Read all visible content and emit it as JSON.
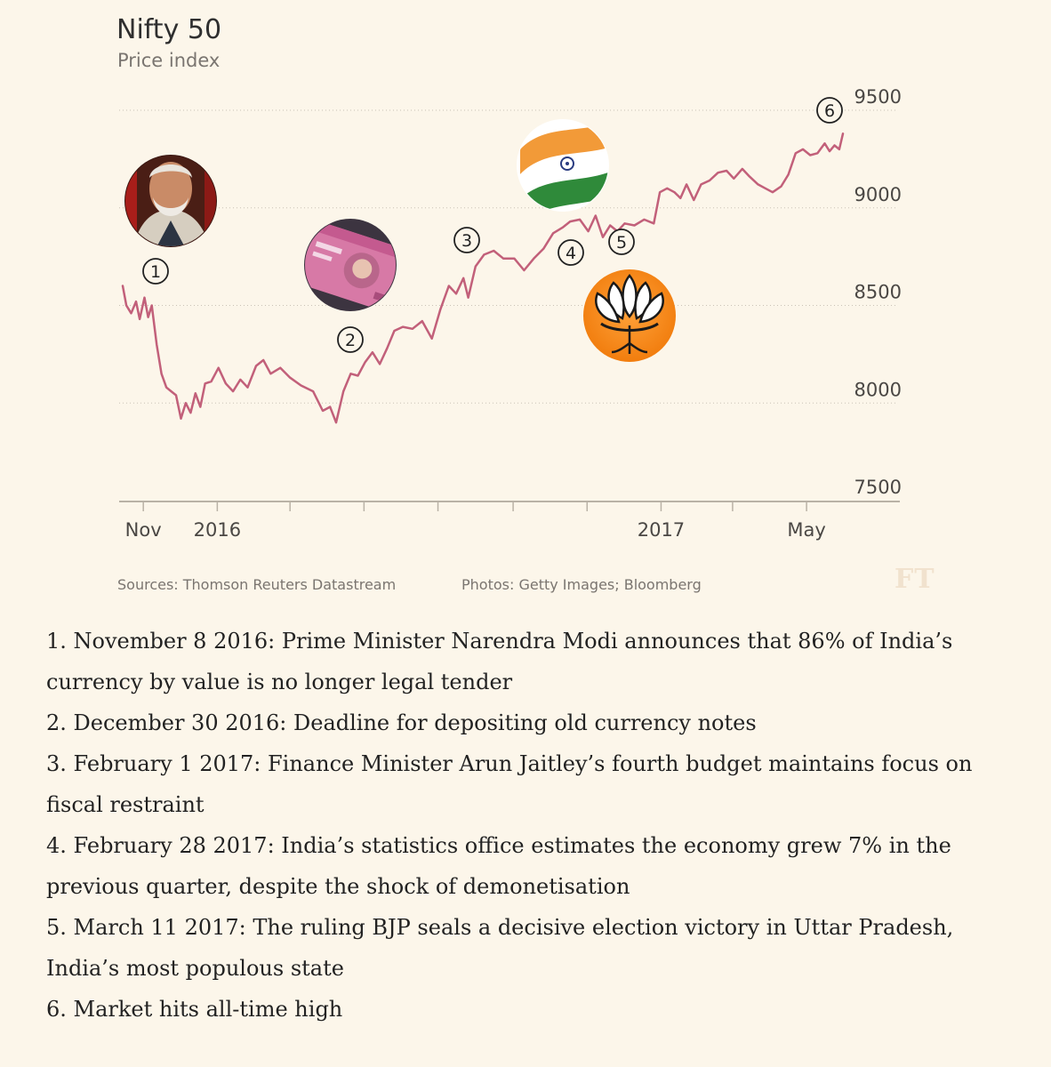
{
  "chart_data": {
    "type": "line",
    "title": "Nifty 50",
    "subtitle": "Price index",
    "ylim": [
      7500,
      9500
    ],
    "yticks": [
      7500,
      8000,
      8500,
      9000,
      9500
    ],
    "xlim": [
      "2015-10-15",
      "2017-05-31"
    ],
    "x_tick_labels": [
      {
        "label": "Nov",
        "date": "2015-11-01"
      },
      {
        "label": "2016",
        "date": "2016-01-01"
      },
      {
        "label": "2017",
        "date": "2017-01-01"
      },
      {
        "label": "May",
        "date": "2017-05-01"
      }
    ],
    "series": [
      {
        "color": "#c2607a",
        "points": [
          [
            "2015-10-15",
            8600
          ],
          [
            "2015-10-18",
            8500
          ],
          [
            "2015-10-22",
            8460
          ],
          [
            "2015-10-26",
            8520
          ],
          [
            "2015-10-29",
            8430
          ],
          [
            "2015-11-02",
            8540
          ],
          [
            "2015-11-05",
            8440
          ],
          [
            "2015-11-08",
            8500
          ],
          [
            "2015-11-12",
            8300
          ],
          [
            "2015-11-16",
            8150
          ],
          [
            "2015-11-20",
            8080
          ],
          [
            "2015-11-24",
            8060
          ],
          [
            "2015-11-28",
            8040
          ],
          [
            "2015-12-02",
            7920
          ],
          [
            "2015-12-06",
            8000
          ],
          [
            "2015-12-10",
            7950
          ],
          [
            "2015-12-14",
            8050
          ],
          [
            "2015-12-18",
            7980
          ],
          [
            "2015-12-22",
            8100
          ],
          [
            "2015-12-27",
            8110
          ],
          [
            "2016-01-02",
            8180
          ],
          [
            "2016-01-08",
            8100
          ],
          [
            "2016-01-14",
            8060
          ],
          [
            "2016-01-20",
            8120
          ],
          [
            "2016-01-26",
            8080
          ],
          [
            "2016-02-02",
            8190
          ],
          [
            "2016-02-08",
            8220
          ],
          [
            "2016-02-14",
            8150
          ],
          [
            "2016-02-22",
            8180
          ],
          [
            "2016-03-01",
            8130
          ],
          [
            "2016-03-10",
            8090
          ],
          [
            "2016-03-20",
            8060
          ],
          [
            "2016-03-28",
            7960
          ],
          [
            "2016-04-03",
            7980
          ],
          [
            "2016-04-08",
            7900
          ],
          [
            "2016-04-14",
            8060
          ],
          [
            "2016-04-20",
            8150
          ],
          [
            "2016-04-26",
            8140
          ],
          [
            "2016-05-02",
            8210
          ],
          [
            "2016-05-08",
            8260
          ],
          [
            "2016-05-14",
            8200
          ],
          [
            "2016-05-20",
            8280
          ],
          [
            "2016-05-26",
            8370
          ],
          [
            "2016-06-02",
            8390
          ],
          [
            "2016-06-10",
            8380
          ],
          [
            "2016-06-18",
            8420
          ],
          [
            "2016-06-26",
            8330
          ],
          [
            "2016-07-03",
            8480
          ],
          [
            "2016-07-10",
            8600
          ],
          [
            "2016-07-16",
            8560
          ],
          [
            "2016-07-22",
            8640
          ],
          [
            "2016-07-26",
            8540
          ],
          [
            "2016-08-01",
            8700
          ],
          [
            "2016-08-08",
            8760
          ],
          [
            "2016-08-16",
            8780
          ],
          [
            "2016-08-24",
            8740
          ],
          [
            "2016-09-02",
            8740
          ],
          [
            "2016-09-10",
            8680
          ],
          [
            "2016-09-18",
            8740
          ],
          [
            "2016-09-26",
            8790
          ],
          [
            "2016-10-04",
            8870
          ],
          [
            "2016-10-12",
            8900
          ],
          [
            "2016-10-18",
            8930
          ],
          [
            "2016-10-26",
            8940
          ],
          [
            "2016-11-02",
            8880
          ],
          [
            "2016-11-08",
            8960
          ],
          [
            "2016-11-14",
            8850
          ],
          [
            "2016-11-20",
            8910
          ],
          [
            "2016-11-26",
            8880
          ],
          [
            "2016-12-02",
            8920
          ],
          [
            "2016-12-10",
            8910
          ],
          [
            "2016-12-18",
            8940
          ],
          [
            "2016-12-26",
            8920
          ],
          [
            "2016-12-31",
            9080
          ],
          [
            "2017-01-06",
            9100
          ],
          [
            "2017-01-12",
            9080
          ],
          [
            "2017-01-17",
            9050
          ],
          [
            "2017-01-22",
            9120
          ],
          [
            "2017-01-28",
            9040
          ],
          [
            "2017-02-03",
            9120
          ],
          [
            "2017-02-10",
            9140
          ],
          [
            "2017-02-17",
            9180
          ],
          [
            "2017-02-24",
            9190
          ],
          [
            "2017-03-02",
            9150
          ],
          [
            "2017-03-09",
            9200
          ],
          [
            "2017-03-15",
            9160
          ],
          [
            "2017-03-22",
            9120
          ],
          [
            "2017-03-28",
            9100
          ],
          [
            "2017-04-03",
            9080
          ],
          [
            "2017-04-10",
            9110
          ],
          [
            "2017-04-16",
            9170
          ],
          [
            "2017-04-22",
            9280
          ],
          [
            "2017-04-28",
            9300
          ],
          [
            "2017-05-04",
            9270
          ],
          [
            "2017-05-10",
            9280
          ],
          [
            "2017-05-16",
            9330
          ],
          [
            "2017-05-20",
            9290
          ],
          [
            "2017-05-24",
            9320
          ],
          [
            "2017-05-28",
            9300
          ],
          [
            "2017-05-31",
            9380
          ]
        ]
      }
    ],
    "annotations": [
      {
        "label": "1",
        "date": "2015-11-08"
      },
      {
        "label": "2",
        "date": "2016-04-08"
      },
      {
        "label": "3",
        "date": "2016-07-26"
      },
      {
        "label": "4",
        "date": "2016-11-14"
      },
      {
        "label": "5",
        "date": "2016-12-05"
      },
      {
        "label": "6",
        "date": "2017-05-12"
      }
    ]
  },
  "photos": {
    "modi": "modi-portrait-photo",
    "banknote": "currency-note-photo",
    "flag": "india-flag-photo",
    "bjp": "bjp-lotus-logo"
  },
  "colors": {
    "line": "#c2607a",
    "background": "#fcf6ea",
    "grid": "#c9c2b6",
    "text": "#2f2f2f",
    "muted": "#7a7570"
  },
  "footer": {
    "sources": "Sources: Thomson Reuters Datastream",
    "photos": "Photos: Getty Images; Bloomberg",
    "logo": "FT"
  },
  "notes": [
    "1. November 8 2016: Prime Minister Narendra Modi announces that 86% of India’s currency by value is no longer legal tender",
    "2. December 30 2016: Deadline for depositing old currency notes",
    "3. February 1 2017: Finance Minister Arun Jaitley’s fourth budget maintains focus on fiscal restraint",
    "4. February 28 2017: India’s statistics office estimates the economy grew 7% in the previous quarter, despite the shock of demonetisation",
    "5. March 11 2017: The ruling BJP seals a decisive election victory in Uttar Pradesh, India’s most populous state",
    "6. Market hits all-time high"
  ]
}
